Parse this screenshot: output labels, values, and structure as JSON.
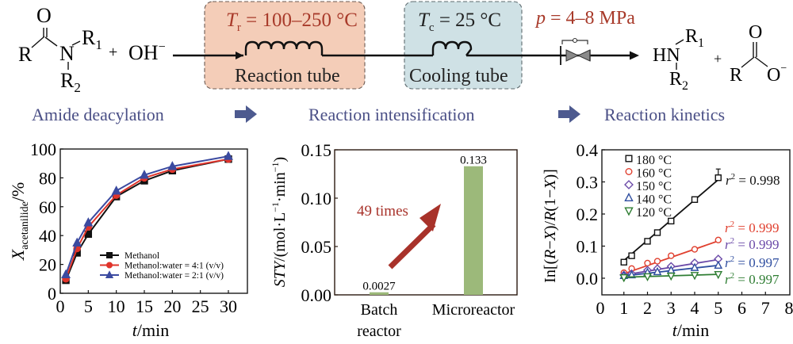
{
  "scheme": {
    "reactant": {
      "R": "R",
      "O": "O",
      "N": "N",
      "R1": "R",
      "R1_sub": "1",
      "R2": "R",
      "R2_sub": "2",
      "plus": "+",
      "hydroxide": "OH",
      "hydroxide_charge": "−"
    },
    "reaction_tube": {
      "temp_symbol": "T",
      "temp_sub": "r",
      "temp_value": " = 100–250 °C",
      "label": "Reaction tube",
      "fill": "#f4cdb8",
      "text_color": "#a83a2a"
    },
    "cooling_tube": {
      "temp_symbol": "T",
      "temp_sub": "c",
      "temp_value": " = 25 °C",
      "label": "Cooling tube",
      "fill": "#cfe1e5"
    },
    "pressure": {
      "symbol": "p",
      "value": " = 4–8 MPa",
      "color": "#a83a2a"
    },
    "products": {
      "HN": "HN",
      "R1": "R",
      "R1_sub": "1",
      "R2": "R",
      "R2_sub": "2",
      "plus": "+",
      "R": "R",
      "O": "O",
      "O_minus": "O",
      "charge": "−"
    }
  },
  "stages": {
    "items": [
      "Amide deacylation",
      "Reaction intensification",
      "Reaction kinetics"
    ],
    "color": "#4a4f86",
    "arrow_color": "#4d5a8f"
  },
  "chart_data": [
    {
      "type": "line",
      "title": "",
      "xlabel_italic": "t",
      "xlabel_rest": "/min",
      "ylabel_main": "X",
      "ylabel_sub": "acetanilide",
      "ylabel_rest": "/%",
      "xlim": [
        0,
        33
      ],
      "ylim": [
        0,
        100
      ],
      "xticks": [
        "0",
        "5",
        "10",
        "15",
        "20",
        "25",
        "30"
      ],
      "xtick_values": [
        0,
        5,
        10,
        15,
        20,
        25,
        30
      ],
      "yticks": [
        "0",
        "20",
        "40",
        "60",
        "80",
        "100"
      ],
      "ytick_values": [
        0,
        20,
        40,
        60,
        80,
        100
      ],
      "legend_position": "bottom-right",
      "x": [
        1,
        3,
        5,
        10,
        15,
        20,
        30
      ],
      "series": [
        {
          "name": "Methanol",
          "values": [
            9,
            28,
            41,
            67,
            78,
            85,
            93
          ],
          "color": "#111111",
          "marker": "square"
        },
        {
          "name": "Methanol:water = 4:1 (v/v)",
          "values": [
            10,
            31,
            46,
            68,
            80,
            86,
            93
          ],
          "color": "#e0342b",
          "marker": "circle"
        },
        {
          "name": "Methanol:water = 2:1 (v/v)",
          "values": [
            13,
            35,
            49,
            71,
            82,
            88,
            95
          ],
          "color": "#3b4aa0",
          "marker": "triangle-up"
        }
      ]
    },
    {
      "type": "bar",
      "title": "",
      "ylabel_italic": "STY",
      "ylabel_rest": "/(mol·L",
      "ylabel_sup1": "−1",
      "ylabel_mid": "·min",
      "ylabel_sup2": "−1",
      "ylabel_end": ")",
      "categories": [
        [
          "Batch",
          "reactor"
        ],
        [
          "Microreactor"
        ]
      ],
      "values": [
        0.0027,
        0.133
      ],
      "value_labels": [
        "0.0027",
        "0.133"
      ],
      "ylim": [
        0,
        0.15
      ],
      "yticks": [
        "0.00",
        "0.05",
        "0.10",
        "0.15"
      ],
      "ytick_values": [
        0,
        0.05,
        0.1,
        0.15
      ],
      "bar_color": "#9cb97a",
      "annotation": {
        "text": "49 times",
        "color": "#a8322a"
      }
    },
    {
      "type": "scatter",
      "title": "",
      "xlabel_italic": "t",
      "xlabel_rest": "/min",
      "ylabel_parts": [
        "In[(",
        "R",
        "−",
        "X",
        ")/",
        "R",
        "(1−",
        "X",
        ")]"
      ],
      "xlim": [
        0,
        8
      ],
      "ylim": [
        -0.05,
        0.4
      ],
      "xticks": [
        "0",
        "1",
        "2",
        "3",
        "4",
        "5",
        "6",
        "7",
        "8"
      ],
      "xtick_values": [
        0,
        1,
        2,
        3,
        4,
        5,
        6,
        7,
        8
      ],
      "yticks": [
        "0.0",
        "0.1",
        "0.2",
        "0.3",
        "0.4"
      ],
      "ytick_values": [
        0,
        0.1,
        0.2,
        0.3,
        0.4
      ],
      "legend_position": "top-left",
      "series": [
        {
          "name": "180 °C",
          "x": [
            1,
            1.33,
            2,
            2.42,
            3,
            4,
            5
          ],
          "values": [
            0.05,
            0.07,
            0.115,
            0.142,
            0.178,
            0.245,
            0.313
          ],
          "fit": [
            0.055,
            0.307
          ],
          "r2_label": "r",
          "r2_value": " = 0.998",
          "color": "#111111",
          "marker": "square"
        },
        {
          "name": "160 °C",
          "x": [
            1,
            1.33,
            2,
            2.42,
            3,
            4,
            5
          ],
          "values": [
            0.017,
            0.03,
            0.047,
            0.053,
            0.07,
            0.09,
            0.119
          ],
          "fit": [
            0.014,
            0.116
          ],
          "r2_label": "r",
          "r2_value": " = 0.999",
          "color": "#e0402f",
          "marker": "circle"
        },
        {
          "name": "150 °C",
          "x": [
            1,
            1.33,
            2,
            2.42,
            3,
            4,
            5
          ],
          "values": [
            0.01,
            0.014,
            0.025,
            0.03,
            0.037,
            0.048,
            0.06
          ],
          "fit": [
            0.01,
            0.058
          ],
          "r2_label": "r",
          "r2_value": " = 0.999",
          "color": "#6b4aa8",
          "marker": "diamond"
        },
        {
          "name": "140 °C",
          "x": [
            1,
            1.33,
            2,
            2.42,
            3,
            4,
            5
          ],
          "values": [
            0.008,
            0.01,
            0.018,
            0.02,
            0.025,
            0.033,
            0.04
          ],
          "fit": [
            0.007,
            0.04
          ],
          "r2_label": "r",
          "r2_value": " = 0.997",
          "color": "#2f4ea0",
          "marker": "triangle-up"
        },
        {
          "name": "120 °C",
          "x": [
            1,
            2,
            3,
            4,
            5
          ],
          "values": [
            0.002,
            0.005,
            0.007,
            0.009,
            0.012
          ],
          "fit": [
            0.003,
            0.012
          ],
          "r2_label": "r",
          "r2_value": " = 0.997",
          "color": "#2e7d32",
          "marker": "triangle-down"
        }
      ]
    }
  ]
}
